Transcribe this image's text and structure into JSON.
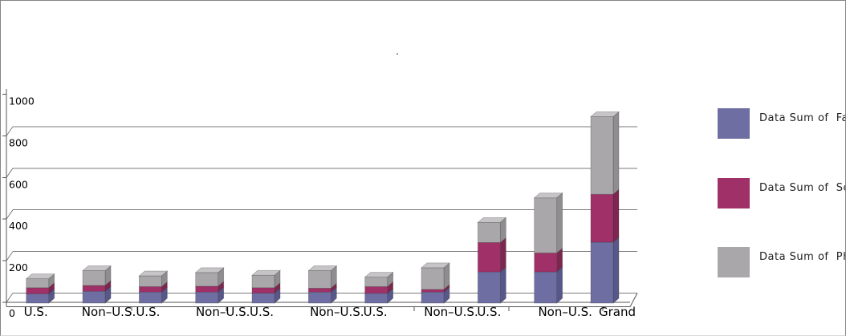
{
  "title_dot": ".",
  "colors": {
    "grid": "#7a7a7a",
    "axis": "#555555",
    "text": "#000000",
    "panel_border": "#848484"
  },
  "legend": {
    "entries": [
      {
        "label": "Data Sum of  Fa",
        "color": "#6e6ea3"
      },
      {
        "label": "Data Sum of  Sc",
        "color": "#a03168"
      },
      {
        "label": "Data Sum of  Ph",
        "color": "#a9a7a9"
      }
    ]
  },
  "chart_data": {
    "type": "bar",
    "subtype": "stacked-3d",
    "title": ".",
    "categories": [
      "U.S.",
      "Non–U.S.",
      "U.S.",
      "Non–U.S.",
      "U.S.",
      "Non–U.S.",
      "U.S.",
      "Non–U.S.",
      "U.S.",
      "Non–U.S.",
      "Grand"
    ],
    "series": [
      {
        "name": "Data Sum of  Fa",
        "color": "#6e6ea3",
        "side_color": "#57578a",
        "top_color": "#9a9ac0",
        "values": [
          45,
          57,
          53,
          53,
          48,
          53,
          47,
          53,
          150,
          150,
          293
        ]
      },
      {
        "name": "Data Sum of  Sc",
        "color": "#a03168",
        "side_color": "#7d2750",
        "top_color": "#b65585",
        "values": [
          29,
          28,
          26,
          28,
          26,
          19,
          32,
          13,
          141,
          91,
          230
        ]
      },
      {
        "name": "Data Sum of  Ph",
        "color": "#a9a7a9",
        "side_color": "#8f8d8f",
        "top_color": "#c6c4c6",
        "values": [
          43,
          71,
          52,
          66,
          60,
          84,
          46,
          104,
          97,
          265,
          373
        ]
      }
    ],
    "y_axis": {
      "ticks": [
        0,
        200,
        400,
        600,
        800,
        1000
      ],
      "min": 0,
      "max": 1000
    },
    "x_axis": {
      "label_text_size": 15
    },
    "grid": true,
    "legend_position": "right"
  }
}
